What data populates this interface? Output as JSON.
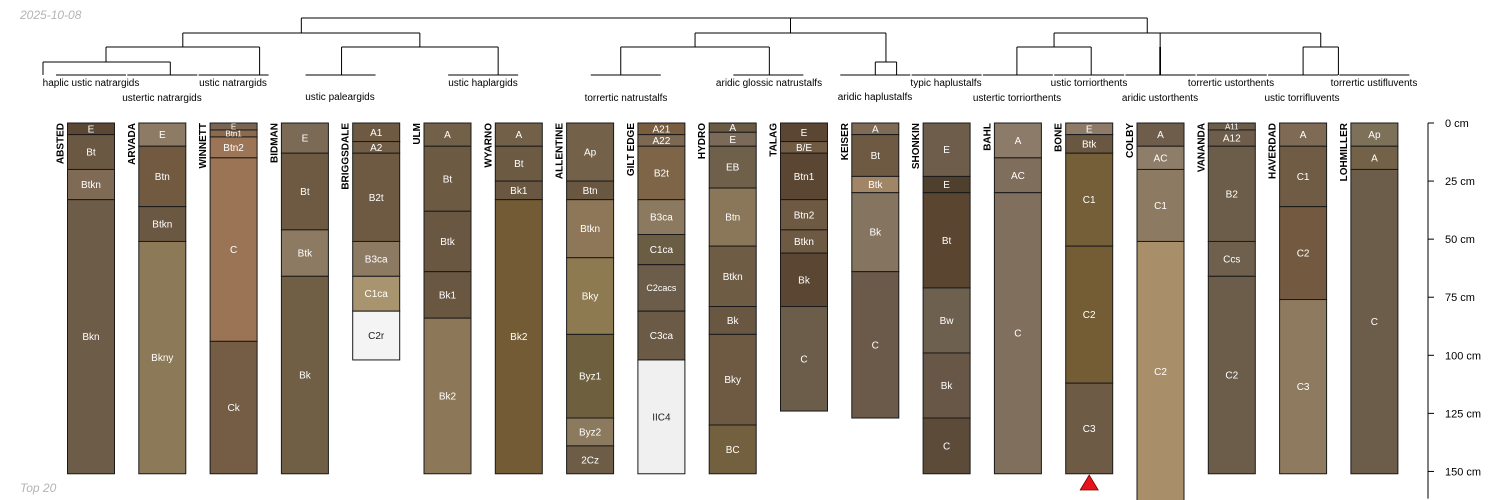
{
  "header": {
    "date": "2025-10-08"
  },
  "footer": {
    "caption": "Top 20"
  },
  "chart_data": {
    "type": "soil-profile-sketch",
    "y_unit": "cm",
    "ylim": [
      0,
      160
    ],
    "y_ticks": [
      0,
      25,
      50,
      75,
      100,
      125,
      150
    ],
    "y_tick_labels": [
      "0 cm",
      "25 cm",
      "50 cm",
      "75 cm",
      "100 cm",
      "125 cm",
      "150 cm"
    ],
    "marker": {
      "profile": "BONE",
      "symbol": "triangle",
      "color": "#e8141c"
    },
    "groups": [
      {
        "label": "haplic ustic natrargids",
        "members": [
          "ABSTED"
        ]
      },
      {
        "label": "ustertic natrargids",
        "members": [
          "ARVADA"
        ]
      },
      {
        "label": "ustic natrargids",
        "members": [
          "WINNETT"
        ]
      },
      {
        "label": "ustic paleargids",
        "members": [
          "BIDMAN",
          "BRIGGSDALE"
        ]
      },
      {
        "label": "ustic haplargids",
        "members": [
          "ULM",
          "WYARNO"
        ]
      },
      {
        "label": "torrertic natrustalfs",
        "members": [
          "ALLENTINE",
          "GILT EDGE"
        ]
      },
      {
        "label": "aridic glossic natrustalfs",
        "members": [
          "HYDRO",
          "TALAG"
        ]
      },
      {
        "label": "aridic haplustalfs",
        "members": [
          "KEISER"
        ]
      },
      {
        "label": "typic haplustalfs",
        "members": [
          "SHONKIN"
        ]
      },
      {
        "label": "ustertic torriorthents",
        "members": [
          "BAHL"
        ]
      },
      {
        "label": "ustic torriorthents",
        "members": [
          "BONE"
        ]
      },
      {
        "label": "aridic ustorthents",
        "members": [
          "COLBY"
        ]
      },
      {
        "label": "torrertic ustorthents",
        "members": [
          "VANANDA"
        ]
      },
      {
        "label": "ustic torrifluvents",
        "members": [
          "HAVERDAD"
        ]
      },
      {
        "label": "torrertic ustifluvents",
        "members": [
          "LOHMILLER"
        ]
      }
    ],
    "profiles": [
      {
        "name": "ABSTED",
        "horizons": [
          {
            "name": "E",
            "top": 0,
            "bottom": 5,
            "color": "#5a4834"
          },
          {
            "name": "Bt",
            "top": 5,
            "bottom": 20,
            "color": "#6b5843"
          },
          {
            "name": "Btkn",
            "top": 20,
            "bottom": 33,
            "color": "#7e6a55"
          },
          {
            "name": "Bkn",
            "top": 33,
            "bottom": 151,
            "color": "#6d5d48"
          }
        ]
      },
      {
        "name": "ARVADA",
        "horizons": [
          {
            "name": "E",
            "top": 0,
            "bottom": 10,
            "color": "#8e7b66"
          },
          {
            "name": "Btn",
            "top": 10,
            "bottom": 36,
            "color": "#715a40"
          },
          {
            "name": "Btkn",
            "top": 36,
            "bottom": 51,
            "color": "#6b5843"
          },
          {
            "name": "Bkny",
            "top": 51,
            "bottom": 151,
            "color": "#8c7958"
          }
        ]
      },
      {
        "name": "WINNETT",
        "horizons": [
          {
            "name": "E",
            "top": 0,
            "bottom": 3,
            "color": "#7a6552"
          },
          {
            "name": "Btn1",
            "top": 3,
            "bottom": 6,
            "color": "#8b6a4d"
          },
          {
            "name": "Btn2",
            "top": 6,
            "bottom": 15,
            "color": "#9b7556"
          },
          {
            "name": "C",
            "top": 15,
            "bottom": 94,
            "color": "#9a7455"
          },
          {
            "name": "Ck",
            "top": 94,
            "bottom": 151,
            "color": "#745c45"
          }
        ]
      },
      {
        "name": "BIDMAN",
        "horizons": [
          {
            "name": "E",
            "top": 0,
            "bottom": 13,
            "color": "#7b6a56"
          },
          {
            "name": "Bt",
            "top": 13,
            "bottom": 46,
            "color": "#6e5a42"
          },
          {
            "name": "Btk",
            "top": 46,
            "bottom": 66,
            "color": "#8c7a62"
          },
          {
            "name": "Bk",
            "top": 66,
            "bottom": 151,
            "color": "#705f45"
          }
        ]
      },
      {
        "name": "BRIGGSDALE",
        "horizons": [
          {
            "name": "A1",
            "top": 0,
            "bottom": 8,
            "color": "#6e5a42"
          },
          {
            "name": "A2",
            "top": 8,
            "bottom": 13,
            "color": "#715d45"
          },
          {
            "name": "B2t",
            "top": 13,
            "bottom": 51,
            "color": "#6e5a42"
          },
          {
            "name": "B3ca",
            "top": 51,
            "bottom": 66,
            "color": "#8c7a62"
          },
          {
            "name": "C1ca",
            "top": 66,
            "bottom": 81,
            "color": "#a8946f"
          },
          {
            "name": "C2r",
            "top": 81,
            "bottom": 102,
            "color": "#f4f4f4"
          }
        ]
      },
      {
        "name": "ULM",
        "horizons": [
          {
            "name": "A",
            "top": 0,
            "bottom": 10,
            "color": "#726049"
          },
          {
            "name": "Bt",
            "top": 10,
            "bottom": 38,
            "color": "#6d5a42"
          },
          {
            "name": "Btk",
            "top": 38,
            "bottom": 64,
            "color": "#6a5741"
          },
          {
            "name": "Bk1",
            "top": 64,
            "bottom": 84,
            "color": "#6a5741"
          },
          {
            "name": "Bk2",
            "top": 84,
            "bottom": 151,
            "color": "#8c7859"
          }
        ]
      },
      {
        "name": "WYARNO",
        "horizons": [
          {
            "name": "A",
            "top": 0,
            "bottom": 10,
            "color": "#726049"
          },
          {
            "name": "Bt",
            "top": 10,
            "bottom": 25,
            "color": "#6d5a42"
          },
          {
            "name": "Bk1",
            "top": 25,
            "bottom": 33,
            "color": "#6a5741"
          },
          {
            "name": "Bk2",
            "top": 33,
            "bottom": 151,
            "color": "#735c35"
          }
        ]
      },
      {
        "name": "ALLENTINE",
        "horizons": [
          {
            "name": "Ap",
            "top": 0,
            "bottom": 25,
            "color": "#736249"
          },
          {
            "name": "Btn",
            "top": 25,
            "bottom": 33,
            "color": "#6a5741"
          },
          {
            "name": "Btkn",
            "top": 33,
            "bottom": 58,
            "color": "#8d7758"
          },
          {
            "name": "Bky",
            "top": 58,
            "bottom": 91,
            "color": "#8e7a51"
          },
          {
            "name": "Byz1",
            "top": 91,
            "bottom": 127,
            "color": "#6e603f"
          },
          {
            "name": "Byz2",
            "top": 127,
            "bottom": 139,
            "color": "#8b7a5d"
          },
          {
            "name": "2Cz",
            "top": 139,
            "bottom": 151,
            "color": "#6d5c46"
          }
        ]
      },
      {
        "name": "GILT EDGE",
        "horizons": [
          {
            "name": "A21",
            "top": 0,
            "bottom": 5,
            "color": "#7a5d3e"
          },
          {
            "name": "A22",
            "top": 5,
            "bottom": 10,
            "color": "#7d6851"
          },
          {
            "name": "B2t",
            "top": 10,
            "bottom": 33,
            "color": "#7f6548"
          },
          {
            "name": "B3ca",
            "top": 33,
            "bottom": 48,
            "color": "#8b7960"
          },
          {
            "name": "C1ca",
            "top": 48,
            "bottom": 61,
            "color": "#6b5d43"
          },
          {
            "name": "C2cacs",
            "top": 61,
            "bottom": 81,
            "color": "#6b5d4a"
          },
          {
            "name": "C3ca",
            "top": 81,
            "bottom": 102,
            "color": "#6b5a45"
          },
          {
            "name": "IIC4",
            "top": 102,
            "bottom": 151,
            "color": "#f0f0f0"
          }
        ]
      },
      {
        "name": "HYDRO",
        "horizons": [
          {
            "name": "A",
            "top": 0,
            "bottom": 4,
            "color": "#6b5a44"
          },
          {
            "name": "E",
            "top": 4,
            "bottom": 10,
            "color": "#7a6a57"
          },
          {
            "name": "EB",
            "top": 10,
            "bottom": 28,
            "color": "#6f604b"
          },
          {
            "name": "Btn",
            "top": 28,
            "bottom": 53,
            "color": "#8a7759"
          },
          {
            "name": "Btkn",
            "top": 53,
            "bottom": 79,
            "color": "#6f5c45"
          },
          {
            "name": "Bk",
            "top": 79,
            "bottom": 91,
            "color": "#6a5741"
          },
          {
            "name": "Bky",
            "top": 91,
            "bottom": 130,
            "color": "#6e5a42"
          },
          {
            "name": "BC",
            "top": 130,
            "bottom": 151,
            "color": "#72603f"
          }
        ]
      },
      {
        "name": "TALAG",
        "horizons": [
          {
            "name": "E",
            "top": 0,
            "bottom": 8,
            "color": "#5b4634"
          },
          {
            "name": "B/E",
            "top": 8,
            "bottom": 13,
            "color": "#725b43"
          },
          {
            "name": "Btn1",
            "top": 13,
            "bottom": 33,
            "color": "#5b4634"
          },
          {
            "name": "Btn2",
            "top": 33,
            "bottom": 46,
            "color": "#6e5a42"
          },
          {
            "name": "Btkn",
            "top": 46,
            "bottom": 56,
            "color": "#6e5a42"
          },
          {
            "name": "Bk",
            "top": 56,
            "bottom": 79,
            "color": "#5b4634"
          },
          {
            "name": "C",
            "top": 79,
            "bottom": 124,
            "color": "#6b5d4a"
          }
        ]
      },
      {
        "name": "KEISER",
        "horizons": [
          {
            "name": "A",
            "top": 0,
            "bottom": 5,
            "color": "#7e6a55"
          },
          {
            "name": "Bt",
            "top": 5,
            "bottom": 23,
            "color": "#6e5a42"
          },
          {
            "name": "Btk",
            "top": 23,
            "bottom": 30,
            "color": "#a08566"
          },
          {
            "name": "Bk",
            "top": 30,
            "bottom": 64,
            "color": "#857560"
          },
          {
            "name": "C",
            "top": 64,
            "bottom": 127,
            "color": "#6b5a4a"
          }
        ]
      },
      {
        "name": "SHONKIN",
        "horizons": [
          {
            "name": "E",
            "top": 0,
            "bottom": 23,
            "color": "#6e5d4b"
          },
          {
            "name": "E",
            "top": 23,
            "bottom": 30,
            "color": "#4f3f2d"
          },
          {
            "name": "Bt",
            "top": 30,
            "bottom": 71,
            "color": "#5a4530"
          },
          {
            "name": "Bw",
            "top": 71,
            "bottom": 99,
            "color": "#6d604f"
          },
          {
            "name": "Bk",
            "top": 99,
            "bottom": 127,
            "color": "#685747"
          },
          {
            "name": "C",
            "top": 127,
            "bottom": 151,
            "color": "#5d4b3a"
          }
        ]
      },
      {
        "name": "BAHL",
        "horizons": [
          {
            "name": "A",
            "top": 0,
            "bottom": 15,
            "color": "#8c7b68"
          },
          {
            "name": "AC",
            "top": 15,
            "bottom": 30,
            "color": "#7f6e5b"
          },
          {
            "name": "C",
            "top": 30,
            "bottom": 151,
            "color": "#806f5c"
          }
        ]
      },
      {
        "name": "BONE",
        "horizons": [
          {
            "name": "E",
            "top": 0,
            "bottom": 5,
            "color": "#8d7b67"
          },
          {
            "name": "Btk",
            "top": 5,
            "bottom": 13,
            "color": "#6a5741"
          },
          {
            "name": "C1",
            "top": 13,
            "bottom": 53,
            "color": "#755f38"
          },
          {
            "name": "C2",
            "top": 53,
            "bottom": 112,
            "color": "#745c34"
          },
          {
            "name": "C3",
            "top": 112,
            "bottom": 151,
            "color": "#6d5b46"
          }
        ]
      },
      {
        "name": "COLBY",
        "horizons": [
          {
            "name": "A",
            "top": 0,
            "bottom": 10,
            "color": "#6e5d4b"
          },
          {
            "name": "AC",
            "top": 10,
            "bottom": 20,
            "color": "#8e7d69"
          },
          {
            "name": "C1",
            "top": 20,
            "bottom": 51,
            "color": "#8c7a62"
          },
          {
            "name": "C2",
            "top": 51,
            "bottom": 163,
            "color": "#a88e69"
          }
        ]
      },
      {
        "name": "VANANDA",
        "horizons": [
          {
            "name": "A11",
            "top": 0,
            "bottom": 3,
            "color": "#6b5d4a"
          },
          {
            "name": "A12",
            "top": 3,
            "bottom": 10,
            "color": "#6e5d4b"
          },
          {
            "name": "B2",
            "top": 10,
            "bottom": 51,
            "color": "#6b5d4a"
          },
          {
            "name": "Ccs",
            "top": 51,
            "bottom": 66,
            "color": "#6e604d"
          },
          {
            "name": "C2",
            "top": 66,
            "bottom": 151,
            "color": "#6b5d4a"
          }
        ]
      },
      {
        "name": "HAVERDAD",
        "horizons": [
          {
            "name": "A",
            "top": 0,
            "bottom": 10,
            "color": "#7e6a55"
          },
          {
            "name": "C1",
            "top": 10,
            "bottom": 36,
            "color": "#705b44"
          },
          {
            "name": "C2",
            "top": 36,
            "bottom": 76,
            "color": "#73593f"
          },
          {
            "name": "C3",
            "top": 76,
            "bottom": 151,
            "color": "#8e7a5e"
          }
        ]
      },
      {
        "name": "LOHMILLER",
        "horizons": [
          {
            "name": "Ap",
            "top": 0,
            "bottom": 10,
            "color": "#7e7159"
          },
          {
            "name": "A",
            "top": 10,
            "bottom": 20,
            "color": "#736148"
          },
          {
            "name": "C",
            "top": 20,
            "bottom": 151,
            "color": "#6b5d4a"
          }
        ]
      }
    ]
  }
}
